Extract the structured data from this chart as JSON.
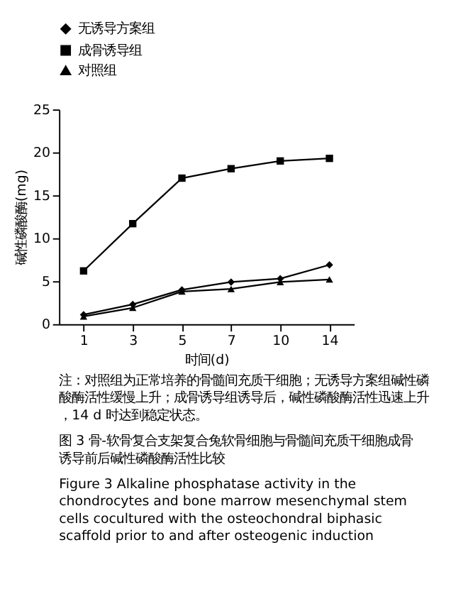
{
  "chart_data": {
    "type": "line",
    "xlabel": "时间(d)",
    "ylabel": "碱性磷酸酶(mg)",
    "categories": [
      "1",
      "3",
      "5",
      "7",
      "10",
      "14"
    ],
    "series": [
      {
        "name": "无诱导方案组",
        "color": "#000000",
        "marker": "diamond",
        "values": [
          1.1,
          2.3,
          4.0,
          4.9,
          5.3,
          6.9
        ]
      },
      {
        "name": "成骨诱导组",
        "color": "#000000",
        "marker": "square",
        "values": [
          6.2,
          11.7,
          17.0,
          18.1,
          19.0,
          19.3
        ]
      },
      {
        "name": "对照组",
        "color": "#000000",
        "marker": "triangle",
        "values": [
          0.9,
          1.9,
          3.8,
          4.1,
          4.9,
          5.2
        ]
      }
    ],
    "ylim": [
      0,
      25
    ],
    "yticks": [
      0,
      5,
      10,
      15,
      20,
      25
    ],
    "grid": false,
    "legend": "top left",
    "annotations": [
      "注：对照组为正常培养的骨髓间充质干细胞；无诱导方案组碱性磷酸酶活性缓慢上升；成骨诱导组诱导后，碱性磷酸酶活性迅速上升，14 d 时达到稳定状态。",
      "图 3  骨-软骨复合支架复合兔软骨细胞与骨髓间充质干细胞成骨诱导前后碱性磷酸酶活性比较",
      "Figure 3  Alkaline phosphatase activity in the chondrocytes and bone marrow mesenchymal stem cells cocultured with the osteochondral biphasic scaffold prior to and after osteogenic induction"
    ]
  }
}
